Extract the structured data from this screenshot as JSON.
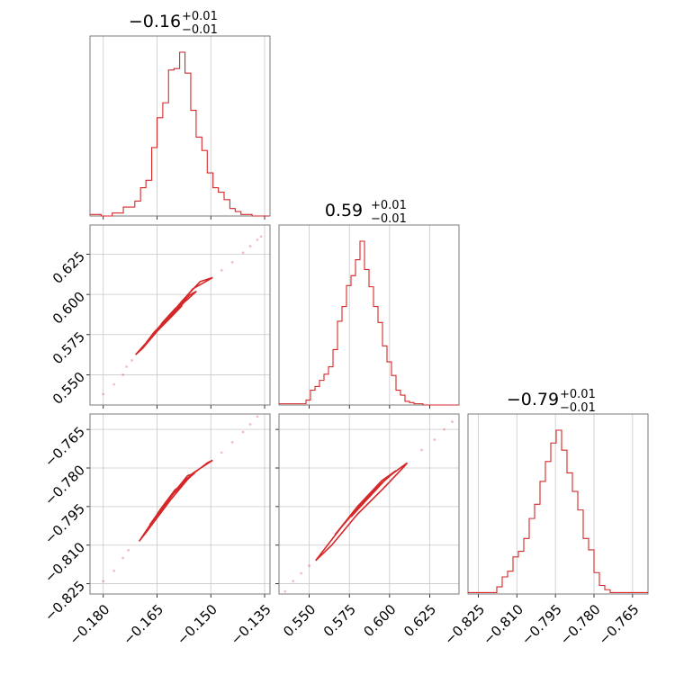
{
  "colors": {
    "accent": "#d62728",
    "grid": "#c8c8c8",
    "frame": "#7a7a7a"
  },
  "chart_data": {
    "type": "corner",
    "grid": true,
    "parameters": [
      {
        "index": 0,
        "range": [
          -0.1837,
          -0.1335
        ],
        "ticks": [
          -0.18,
          -0.165,
          -0.15,
          -0.135
        ],
        "tick_labels": [
          "−0.180",
          "−0.165",
          "−0.150",
          "−0.135"
        ],
        "title": {
          "value": "−0.16",
          "upper": "+0.01",
          "lower": "−0.01"
        },
        "hist_bins": [
          -0.1837,
          -0.1806,
          -0.1775,
          -0.1744,
          -0.1712,
          -0.1696,
          -0.1681,
          -0.1665,
          -0.165,
          -0.1634,
          -0.1618,
          -0.1603,
          -0.1587,
          -0.1572,
          -0.1556,
          -0.1541,
          -0.1525,
          -0.151,
          -0.1494,
          -0.1479,
          -0.1463,
          -0.1447,
          -0.1432,
          -0.1416,
          -0.1401,
          -0.1385,
          -0.1335
        ],
        "hist_counts": [
          1,
          0,
          2,
          6,
          10,
          19,
          24,
          46,
          66,
          76,
          98,
          99,
          110,
          96,
          71,
          53,
          44,
          29,
          19,
          16,
          11,
          5,
          3,
          1,
          1,
          0
        ]
      },
      {
        "index": 1,
        "range": [
          0.5312,
          0.6432
        ],
        "ticks": [
          0.55,
          0.575,
          0.6,
          0.625
        ],
        "tick_labels": [
          "0.550",
          "0.575",
          "0.600",
          "0.625"
        ],
        "title": {
          "value": "0.59",
          "upper": "+0.01",
          "lower": "−0.01"
        },
        "hist_bins": [
          0.5312,
          0.548,
          0.5508,
          0.5536,
          0.5564,
          0.5592,
          0.562,
          0.5648,
          0.5676,
          0.5704,
          0.5732,
          0.576,
          0.5788,
          0.5816,
          0.5844,
          0.5872,
          0.59,
          0.5928,
          0.5956,
          0.5984,
          0.6012,
          0.604,
          0.6068,
          0.6096,
          0.6124,
          0.6152,
          0.618,
          0.6208,
          0.6236,
          0.6432
        ],
        "hist_counts": [
          1,
          4,
          12,
          15,
          20,
          25,
          31,
          45,
          68,
          80,
          97,
          105,
          118,
          133,
          110,
          96,
          80,
          67,
          48,
          35,
          24,
          12,
          8,
          3,
          2,
          1,
          1,
          0,
          0
        ]
      },
      {
        "index": 2,
        "range": [
          -0.829,
          -0.759
        ],
        "ticks": [
          -0.825,
          -0.81,
          -0.795,
          -0.78,
          -0.765
        ],
        "tick_labels": [
          "−0.825",
          "−0.810",
          "−0.795",
          "−0.780",
          "−0.765"
        ],
        "title": {
          "value": "−0.79",
          "upper": "+0.01",
          "lower": "−0.01"
        },
        "hist_bins": [
          -0.829,
          -0.8178,
          -0.8157,
          -0.8136,
          -0.8115,
          -0.8094,
          -0.8073,
          -0.8052,
          -0.8031,
          -0.801,
          -0.7989,
          -0.7968,
          -0.7947,
          -0.7926,
          -0.7905,
          -0.7884,
          -0.7863,
          -0.7842,
          -0.7821,
          -0.78,
          -0.7779,
          -0.7758,
          -0.7737,
          -0.759
        ],
        "hist_counts": [
          1,
          5,
          12,
          16,
          26,
          30,
          39,
          53,
          63,
          79,
          93,
          106,
          115,
          101,
          85,
          72,
          59,
          39,
          31,
          15,
          6,
          3,
          1
        ]
      }
    ],
    "pairs": [
      {
        "x_param": 0,
        "y_param": 1,
        "contours": [
          [
            [
              -0.171,
              0.5625
            ],
            [
              -0.165,
              0.5775
            ],
            [
              -0.158,
              0.596
            ],
            [
              -0.153,
              0.608
            ],
            [
              -0.1495,
              0.6105
            ],
            [
              -0.155,
              0.6035
            ],
            [
              -0.162,
              0.585
            ],
            [
              -0.169,
              0.5665
            ]
          ],
          [
            [
              -0.168,
              0.57
            ],
            [
              -0.1625,
              0.583
            ],
            [
              -0.1575,
              0.595
            ],
            [
              -0.154,
              0.602
            ],
            [
              -0.156,
              0.5995
            ],
            [
              -0.1605,
              0.589
            ],
            [
              -0.166,
              0.576
            ]
          ],
          [
            [
              -0.1655,
              0.576
            ],
            [
              -0.161,
              0.586
            ],
            [
              -0.158,
              0.593
            ],
            [
              -0.1598,
              0.5915
            ],
            [
              -0.1635,
              0.5825
            ]
          ]
        ],
        "outliers": [
          [
            -0.18,
            0.538
          ],
          [
            -0.177,
            0.544
          ],
          [
            -0.1745,
            0.55
          ],
          [
            -0.1735,
            0.555
          ],
          [
            -0.172,
            0.559
          ],
          [
            -0.147,
            0.615
          ],
          [
            -0.144,
            0.62
          ],
          [
            -0.141,
            0.626
          ],
          [
            -0.139,
            0.63
          ],
          [
            -0.137,
            0.634
          ],
          [
            -0.136,
            0.636
          ]
        ]
      },
      {
        "x_param": 0,
        "y_param": 2,
        "contours": [
          [
            [
              -0.17,
              -0.8085
            ],
            [
              -0.164,
              -0.796
            ],
            [
              -0.1575,
              -0.785
            ],
            [
              -0.151,
              -0.778
            ],
            [
              -0.1495,
              -0.777
            ],
            [
              -0.155,
              -0.782
            ],
            [
              -0.161,
              -0.792
            ],
            [
              -0.168,
              -0.805
            ]
          ],
          [
            [
              -0.167,
              -0.802
            ],
            [
              -0.1615,
              -0.7915
            ],
            [
              -0.157,
              -0.785
            ],
            [
              -0.1545,
              -0.782
            ],
            [
              -0.1565,
              -0.783
            ],
            [
              -0.16,
              -0.789
            ],
            [
              -0.165,
              -0.799
            ]
          ],
          [
            [
              -0.165,
              -0.798
            ],
            [
              -0.1605,
              -0.79
            ],
            [
              -0.158,
              -0.7865
            ],
            [
              -0.16,
              -0.7885
            ],
            [
              -0.1635,
              -0.795
            ]
          ]
        ],
        "outliers": [
          [
            -0.18,
            -0.824
          ],
          [
            -0.177,
            -0.82
          ],
          [
            -0.1745,
            -0.815
          ],
          [
            -0.173,
            -0.812
          ],
          [
            -0.147,
            -0.774
          ],
          [
            -0.144,
            -0.77
          ],
          [
            -0.141,
            -0.766
          ],
          [
            -0.139,
            -0.763
          ],
          [
            -0.137,
            -0.76
          ]
        ]
      },
      {
        "x_param": 1,
        "y_param": 2,
        "contours": [
          [
            [
              0.554,
              -0.816
            ],
            [
              0.57,
              -0.803
            ],
            [
              0.585,
              -0.792
            ],
            [
              0.6,
              -0.783
            ],
            [
              0.611,
              -0.778
            ],
            [
              0.609,
              -0.7795
            ],
            [
              0.596,
              -0.788
            ],
            [
              0.58,
              -0.798
            ],
            [
              0.564,
              -0.81
            ]
          ],
          [
            [
              0.566,
              -0.806
            ],
            [
              0.58,
              -0.795
            ],
            [
              0.595,
              -0.785
            ],
            [
              0.604,
              -0.781
            ],
            [
              0.593,
              -0.787
            ],
            [
              0.578,
              -0.797
            ]
          ],
          [
            [
              0.576,
              -0.799
            ],
            [
              0.588,
              -0.79
            ],
            [
              0.596,
              -0.7855
            ],
            [
              0.587,
              -0.7915
            ]
          ]
        ],
        "outliers": [
          [
            0.535,
            -0.828
          ],
          [
            0.54,
            -0.824
          ],
          [
            0.545,
            -0.821
          ],
          [
            0.55,
            -0.818
          ],
          [
            0.62,
            -0.773
          ],
          [
            0.628,
            -0.769
          ],
          [
            0.634,
            -0.765
          ],
          [
            0.639,
            -0.762
          ]
        ]
      }
    ]
  }
}
